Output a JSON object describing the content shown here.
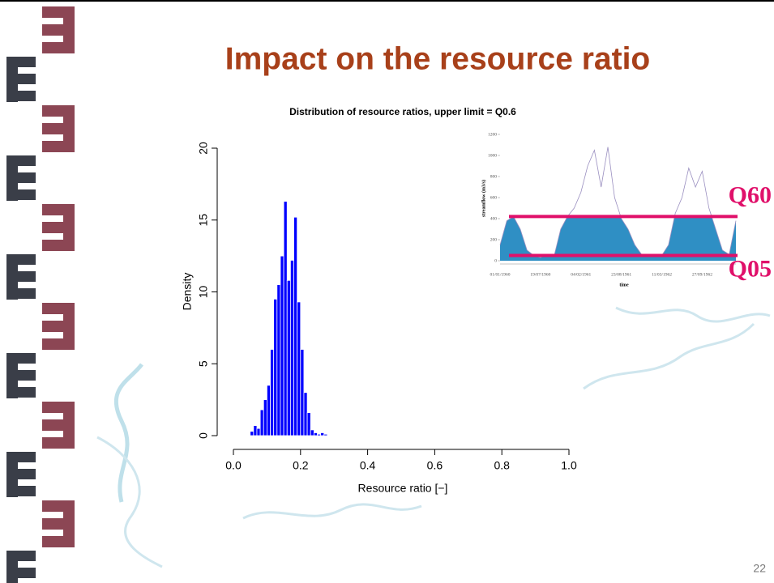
{
  "slide": {
    "title": "Impact on the resource ratio",
    "page_number": "22"
  },
  "chart_data": [
    {
      "type": "histogram",
      "title": "Distribution of resource ratios, upper limit = Q0.6",
      "xlabel": "Resource ratio [−]",
      "ylabel": "Density",
      "color": "#0000ff",
      "bins": [
        0.05,
        0.06,
        0.07,
        0.08,
        0.09,
        0.1,
        0.11,
        0.12,
        0.13,
        0.14,
        0.15,
        0.16,
        0.17,
        0.18,
        0.19,
        0.2,
        0.21,
        0.22,
        0.23,
        0.24,
        0.25,
        0.26,
        0.27,
        0.28
      ],
      "values": [
        0.3,
        0.7,
        0.5,
        1.8,
        2.5,
        3.5,
        6,
        9.5,
        10.5,
        12.5,
        16.3,
        10.8,
        12.2,
        15.2,
        9.3,
        6,
        3,
        1.6,
        0.4,
        0.2,
        0.1,
        0.2,
        0.1
      ],
      "xlim": [
        0,
        1
      ],
      "ylim": [
        0,
        20
      ],
      "xticks": [
        {
          "value": 0,
          "label": "0.0"
        },
        {
          "value": 0.2,
          "label": "0.2"
        },
        {
          "value": 0.4,
          "label": "0.4"
        },
        {
          "value": 0.6,
          "label": "0.6"
        },
        {
          "value": 0.8,
          "label": "0.8"
        },
        {
          "value": 1,
          "label": "1.0"
        }
      ],
      "yticks": [
        0,
        5,
        10,
        15,
        20
      ]
    },
    {
      "type": "area",
      "xlabel": "time",
      "ylabel": "streamflow (m3/s)",
      "color": "#9a8fc0",
      "fill_color": "#2f8fc4",
      "categories": [
        "01/01/1960",
        null,
        null,
        null,
        null,
        null,
        "19/07/1960",
        null,
        null,
        null,
        null,
        null,
        "04/02/1961",
        null,
        null,
        null,
        null,
        null,
        "23/08/1961",
        null,
        null,
        null,
        null,
        null,
        "11/03/1962",
        null,
        null,
        null,
        null,
        null,
        "27/09/1962",
        null,
        null,
        null,
        null,
        null
      ],
      "values": [
        150,
        380,
        420,
        300,
        100,
        50,
        30,
        60,
        40,
        300,
        420,
        500,
        650,
        900,
        1050,
        700,
        1080,
        600,
        400,
        300,
        150,
        60,
        40,
        50,
        50,
        150,
        450,
        600,
        880,
        700,
        850,
        500,
        300,
        100,
        60,
        380
      ],
      "ylim": [
        0,
        1200
      ],
      "yticks": [
        0,
        200,
        400,
        600,
        800,
        1000,
        1200
      ],
      "thresholds": [
        {
          "label": "Q60",
          "value": 420,
          "color": "#e0106a"
        },
        {
          "label": "Q05",
          "value": 50,
          "color": "#e0106a"
        }
      ]
    }
  ]
}
